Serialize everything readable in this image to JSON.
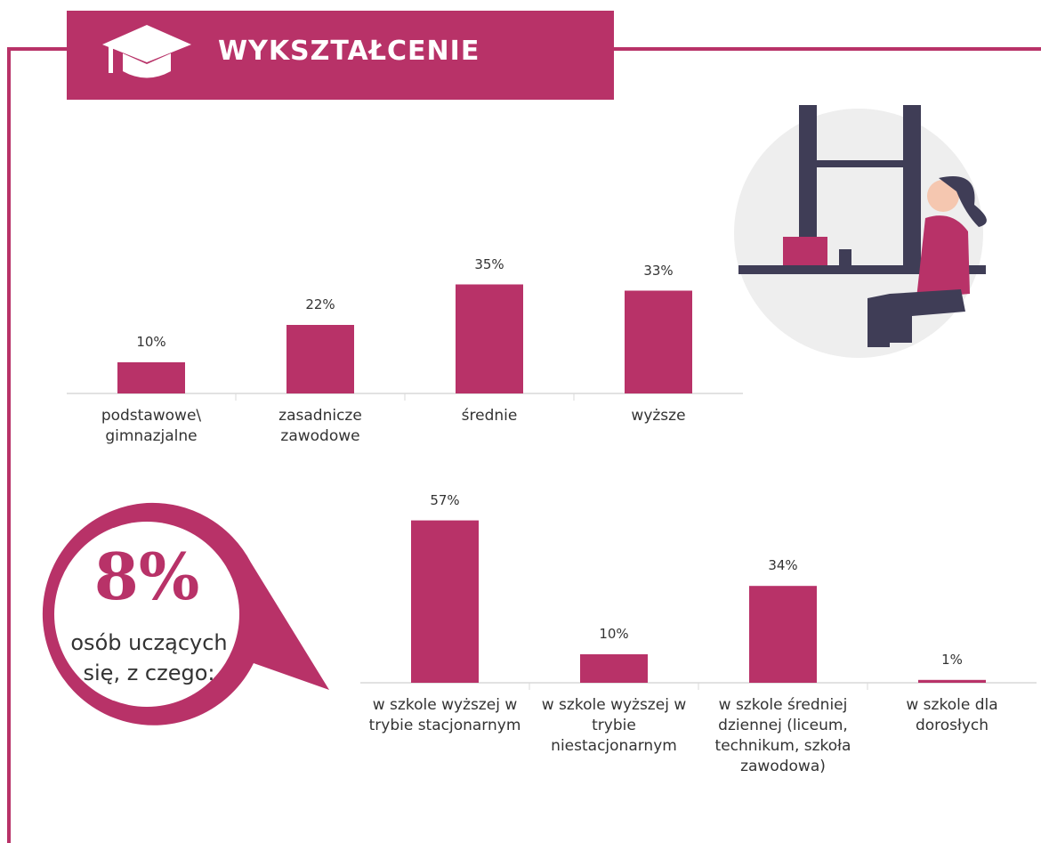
{
  "header": {
    "title": "WYKSZTAŁCENIE"
  },
  "callout": {
    "value_label": "8%",
    "text": "osób uczących się, z czego:"
  },
  "chart_data": [
    {
      "type": "bar",
      "categories": [
        "podstawowe\\ gimnazjalne",
        "zasadnicze zawodowe",
        "średnie",
        "wyższe"
      ],
      "values": [
        10,
        22,
        35,
        33
      ],
      "value_labels": [
        "10%",
        "22%",
        "35%",
        "33%"
      ],
      "color": "#b83268"
    },
    {
      "type": "bar",
      "categories": [
        "w szkole wyższej w trybie stacjonarnym",
        "w szkole wyższej w trybie niestacjonarnym",
        "w szkole średniej dziennej (liceum, technikum, szkoła zawodowa)",
        "w szkole dla dorosłych"
      ],
      "values": [
        57,
        10,
        34,
        1
      ],
      "value_labels": [
        "57%",
        "10%",
        "34%",
        "1%"
      ],
      "color": "#b83268"
    }
  ]
}
